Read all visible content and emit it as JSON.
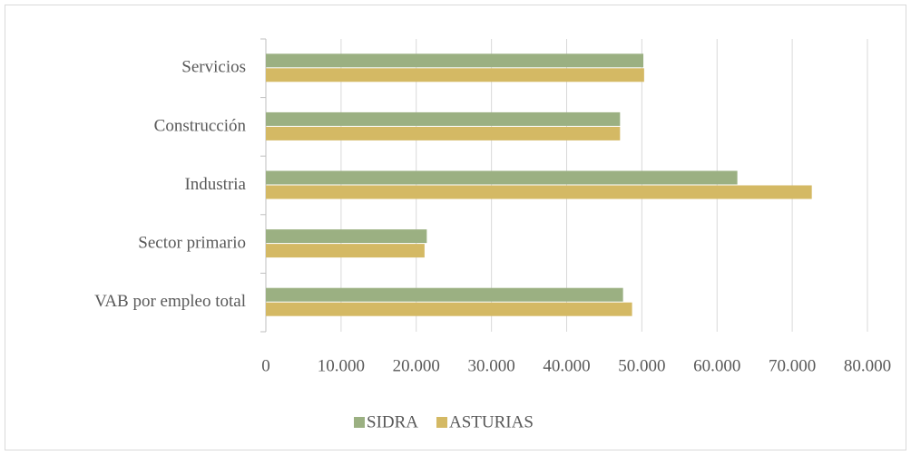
{
  "chart_data": {
    "type": "hbar",
    "categories": [
      "Servicios",
      "Construcción",
      "Industria",
      "Sector primario",
      "VAB por empleo total"
    ],
    "series": [
      {
        "name": "SIDRA",
        "color": "#9bb082",
        "values": [
          50200,
          47100,
          62700,
          21400,
          47500
        ]
      },
      {
        "name": "ASTURIAS",
        "color": "#d4b964",
        "values": [
          50300,
          47100,
          72600,
          21100,
          48700
        ]
      }
    ],
    "xlim": [
      0,
      80000
    ],
    "xticks": [
      0,
      {
        "value": 10000,
        "label": "10.000"
      },
      {
        "value": 20000,
        "label": "20.000"
      },
      {
        "value": 30000,
        "label": "30.000"
      },
      {
        "value": 40000,
        "label": "40.000"
      },
      {
        "value": 50000,
        "label": "50.000"
      },
      {
        "value": 60000,
        "label": "60.000"
      },
      {
        "value": 70000,
        "label": "70.000"
      },
      {
        "value": 80000,
        "label": "80.000"
      }
    ],
    "grid": true,
    "legend": "bottom"
  }
}
